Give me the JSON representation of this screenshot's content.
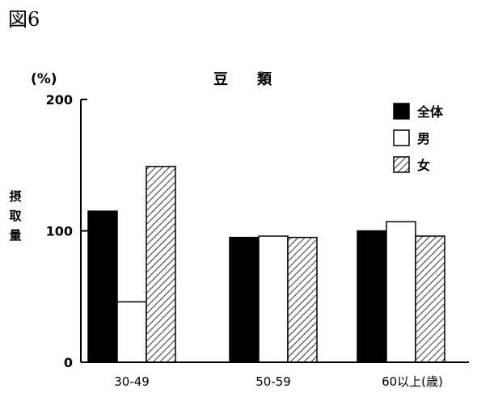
{
  "figure_label": "図6",
  "chart_data": {
    "type": "bar",
    "title": "豆　　類",
    "unit_label": "(%)",
    "ylabel": "摂取量",
    "xlabel": "",
    "categories": [
      "30-49",
      "50-59",
      "60以上"
    ],
    "x_suffix": "(歳)",
    "ylim": [
      0,
      200
    ],
    "yticks": [
      0,
      100,
      200
    ],
    "grid": false,
    "legend_position": "top-right",
    "series": [
      {
        "name": "全体",
        "pattern": "solid-black",
        "color": "#000000",
        "values": [
          115,
          95,
          100
        ]
      },
      {
        "name": "男",
        "pattern": "white",
        "color": "#ffffff",
        "values": [
          46,
          96,
          107
        ]
      },
      {
        "name": "女",
        "pattern": "hatched",
        "color": "#000000",
        "values": [
          149,
          95,
          96
        ]
      }
    ]
  }
}
